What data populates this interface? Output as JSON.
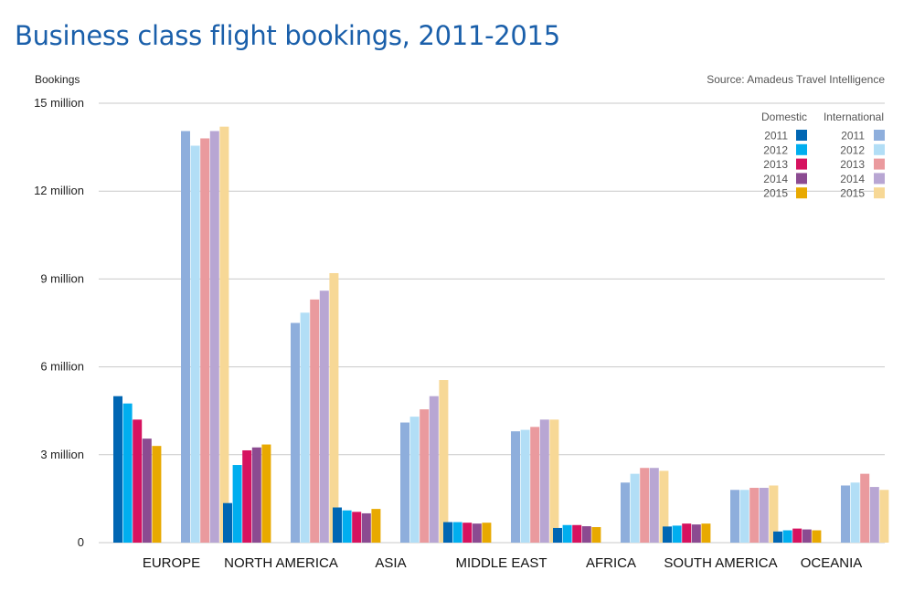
{
  "chart_data": {
    "type": "bar",
    "title": "Business class flight bookings, 2011-2015",
    "ylabel": "Bookings",
    "source": "Source: Amadeus Travel Intelligence",
    "ylim": [
      0,
      15000000
    ],
    "yticks": [
      {
        "value": 0,
        "label": "0"
      },
      {
        "value": 3000000,
        "label": "3 million"
      },
      {
        "value": 6000000,
        "label": "6 million"
      },
      {
        "value": 9000000,
        "label": "9 million"
      },
      {
        "value": 12000000,
        "label": "12 million"
      },
      {
        "value": 15000000,
        "label": "15 million"
      }
    ],
    "grid": true,
    "legend_position": "top-right",
    "legend_groups": [
      "Domestic",
      "International"
    ],
    "categories": [
      "EUROPE",
      "NORTH AMERICA",
      "ASIA",
      "MIDDLE EAST",
      "AFRICA",
      "SOUTH AMERICA",
      "OCEANIA"
    ],
    "series": [
      {
        "group": "Domestic",
        "year": "2011",
        "color": "#0066b3",
        "values": [
          5000000,
          1350000,
          1200000,
          700000,
          500000,
          550000,
          380000
        ]
      },
      {
        "group": "Domestic",
        "year": "2012",
        "color": "#00aeef",
        "values": [
          4750000,
          2650000,
          1100000,
          700000,
          600000,
          580000,
          420000
        ]
      },
      {
        "group": "Domestic",
        "year": "2013",
        "color": "#d6125f",
        "values": [
          4200000,
          3150000,
          1050000,
          680000,
          600000,
          650000,
          480000
        ]
      },
      {
        "group": "Domestic",
        "year": "2014",
        "color": "#8b4b91",
        "values": [
          3550000,
          3250000,
          1000000,
          650000,
          560000,
          620000,
          450000
        ]
      },
      {
        "group": "Domestic",
        "year": "2015",
        "color": "#e8a900",
        "values": [
          3300000,
          3350000,
          1150000,
          680000,
          530000,
          650000,
          420000
        ]
      },
      {
        "group": "International",
        "year": "2011",
        "color": "#8eaedc",
        "values": [
          14050000,
          7500000,
          4100000,
          3800000,
          2050000,
          1800000,
          1950000
        ]
      },
      {
        "group": "International",
        "year": "2012",
        "color": "#b2def6",
        "values": [
          13550000,
          7850000,
          4300000,
          3850000,
          2350000,
          1800000,
          2050000
        ]
      },
      {
        "group": "International",
        "year": "2013",
        "color": "#ea9a9e",
        "values": [
          13800000,
          8300000,
          4550000,
          3950000,
          2550000,
          1870000,
          2350000
        ]
      },
      {
        "group": "International",
        "year": "2014",
        "color": "#b8a6d3",
        "values": [
          14050000,
          8600000,
          5000000,
          4200000,
          2550000,
          1870000,
          1900000
        ]
      },
      {
        "group": "International",
        "year": "2015",
        "color": "#f7d896",
        "values": [
          14200000,
          9200000,
          5550000,
          4200000,
          2450000,
          1950000,
          1800000
        ]
      }
    ]
  }
}
